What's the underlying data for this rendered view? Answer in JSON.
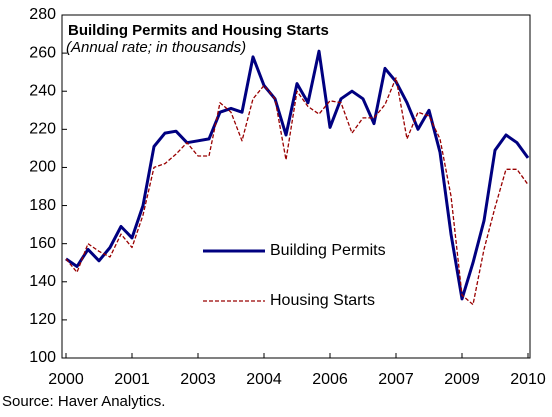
{
  "chart_data": {
    "type": "line",
    "title": "Building Permits and Housing Starts",
    "subtitle": "(Annual rate; in thousands)",
    "source": "Source: Haver Analytics.",
    "categories": [
      "2000",
      null,
      null,
      null,
      null,
      null,
      "2001",
      null,
      null,
      null,
      null,
      null,
      "2003",
      null,
      null,
      null,
      null,
      null,
      "2004",
      null,
      null,
      null,
      null,
      null,
      "2006",
      null,
      null,
      null,
      null,
      null,
      "2007",
      null,
      null,
      null,
      null,
      null,
      "2009",
      null,
      null,
      null,
      null,
      null,
      "2010"
    ],
    "series": [
      {
        "name": "Building Permits",
        "color": "#000080",
        "style": "solid",
        "values": [
          152,
          148,
          157,
          151,
          158,
          169,
          163,
          180,
          211,
          218,
          219,
          213,
          214,
          215,
          229,
          231,
          229,
          258,
          243,
          236,
          217,
          244,
          234,
          261,
          221,
          236,
          240,
          236,
          223,
          252,
          245,
          234,
          220,
          230,
          208,
          165,
          131,
          150,
          172,
          209,
          217,
          213,
          205
        ]
      },
      {
        "name": "Housing Starts",
        "color": "#990000",
        "style": "dashed",
        "values": [
          152,
          145,
          160,
          156,
          153,
          165,
          158,
          175,
          200,
          202,
          207,
          213,
          206,
          206,
          234,
          229,
          214,
          236,
          243,
          236,
          204,
          240,
          232,
          228,
          235,
          234,
          218,
          226,
          226,
          233,
          247,
          215,
          229,
          227,
          215,
          185,
          133,
          128,
          157,
          179,
          199,
          199,
          191
        ]
      }
    ],
    "ylim": [
      100,
      280
    ],
    "yticks": [
      100,
      120,
      140,
      160,
      180,
      200,
      220,
      240,
      260,
      280
    ],
    "grid": false
  }
}
